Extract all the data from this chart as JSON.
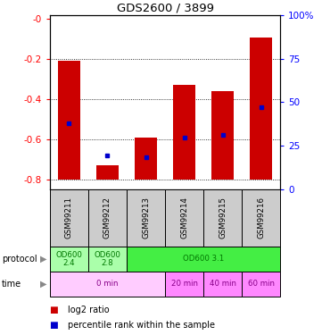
{
  "title": "GDS2600 / 3899",
  "samples": [
    "GSM99211",
    "GSM99212",
    "GSM99213",
    "GSM99214",
    "GSM99215",
    "GSM99216"
  ],
  "log2_bottom": [
    -0.8,
    -0.8,
    -0.8,
    -0.8,
    -0.8,
    -0.8
  ],
  "log2_top": [
    -0.21,
    -0.73,
    -0.59,
    -0.33,
    -0.36,
    -0.09
  ],
  "percentile_rank_y": [
    -0.52,
    -0.68,
    -0.69,
    -0.59,
    -0.58,
    -0.44
  ],
  "ylim_left": [
    -0.85,
    0.02
  ],
  "left_ticks": [
    0,
    -0.2,
    -0.4,
    -0.6,
    -0.8
  ],
  "left_tick_labels": [
    "-0",
    "-0.2",
    "-0.4",
    "-0.6",
    "-0.8"
  ],
  "right_ticks": [
    100,
    75,
    50,
    25,
    0
  ],
  "right_tick_labels": [
    "100%",
    "75",
    "50",
    "25",
    "0"
  ],
  "bar_color": "#cc0000",
  "percentile_color": "#0000cc",
  "protocol_row": [
    {
      "label": "OD600\n2.4",
      "start": 0,
      "end": 1,
      "color": "#aaffaa"
    },
    {
      "label": "OD600\n2.8",
      "start": 1,
      "end": 2,
      "color": "#aaffaa"
    },
    {
      "label": "OD600 3.1",
      "start": 2,
      "end": 6,
      "color": "#44ee44"
    }
  ],
  "time_row": [
    {
      "label": "0 min",
      "start": 0,
      "end": 3,
      "color": "#ffccff"
    },
    {
      "label": "20 min",
      "start": 3,
      "end": 4,
      "color": "#ff88ff"
    },
    {
      "label": "40 min",
      "start": 4,
      "end": 5,
      "color": "#ff88ff"
    },
    {
      "label": "60 min",
      "start": 5,
      "end": 6,
      "color": "#ff88ff"
    }
  ],
  "protocol_text_color": "#007700",
  "time_text_color": "#880088",
  "sample_bg_color": "#cccccc",
  "grid_dotted_color": "#000000"
}
